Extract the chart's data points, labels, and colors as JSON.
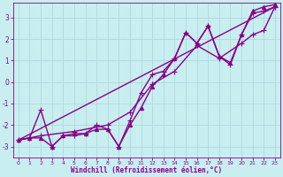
{
  "xlabel": "Windchill (Refroidissement éolien,°C)",
  "background_color": "#c8eef0",
  "grid_color": "#b0d8dc",
  "line_color": "#880088",
  "xlim": [
    -0.5,
    23.5
  ],
  "ylim": [
    -3.5,
    3.7
  ],
  "xticks": [
    0,
    1,
    2,
    3,
    4,
    5,
    6,
    7,
    8,
    9,
    10,
    11,
    12,
    13,
    14,
    15,
    16,
    17,
    18,
    19,
    20,
    21,
    22,
    23
  ],
  "yticks": [
    -3,
    -2,
    -1,
    0,
    1,
    2,
    3
  ],
  "series": [
    {
      "x": [
        0,
        1,
        2,
        3,
        4,
        5,
        6,
        7,
        8,
        9,
        10,
        11,
        12,
        13,
        14,
        15,
        16,
        17,
        18,
        19,
        20,
        21,
        22,
        23
      ],
      "y": [
        -2.7,
        -2.6,
        -1.3,
        -3.0,
        -2.5,
        -2.5,
        -2.4,
        -2.0,
        -2.2,
        -3.0,
        -1.8,
        -0.5,
        0.35,
        0.5,
        1.1,
        2.3,
        1.8,
        2.6,
        1.2,
        0.8,
        2.2,
        3.2,
        3.3,
        3.5
      ],
      "marker": "+",
      "markersize": 5,
      "linewidth": 1.0
    },
    {
      "x": [
        0,
        23
      ],
      "y": [
        -2.7,
        3.5
      ],
      "marker": "None",
      "markersize": 0,
      "linewidth": 1.0
    },
    {
      "x": [
        0,
        2,
        5,
        8,
        10,
        12,
        14,
        16,
        18,
        20,
        21,
        22,
        23
      ],
      "y": [
        -2.7,
        -2.5,
        -2.3,
        -2.0,
        -1.4,
        -0.1,
        0.5,
        1.7,
        1.1,
        1.8,
        2.2,
        2.4,
        3.5
      ],
      "marker": "+",
      "markersize": 4,
      "linewidth": 1.0
    },
    {
      "x": [
        0,
        1,
        2,
        3,
        4,
        5,
        6,
        7,
        8,
        9,
        10,
        11,
        12,
        13,
        14,
        15,
        16,
        17,
        18,
        19,
        20,
        21,
        22,
        23
      ],
      "y": [
        -2.7,
        -2.6,
        -2.6,
        -3.0,
        -2.5,
        -2.4,
        -2.4,
        -2.2,
        -2.2,
        -3.0,
        -2.0,
        -1.2,
        -0.2,
        0.35,
        1.1,
        2.3,
        1.8,
        2.6,
        1.2,
        0.9,
        2.2,
        3.3,
        3.5,
        3.6
      ],
      "marker": "^",
      "markersize": 3,
      "linewidth": 1.0
    }
  ]
}
